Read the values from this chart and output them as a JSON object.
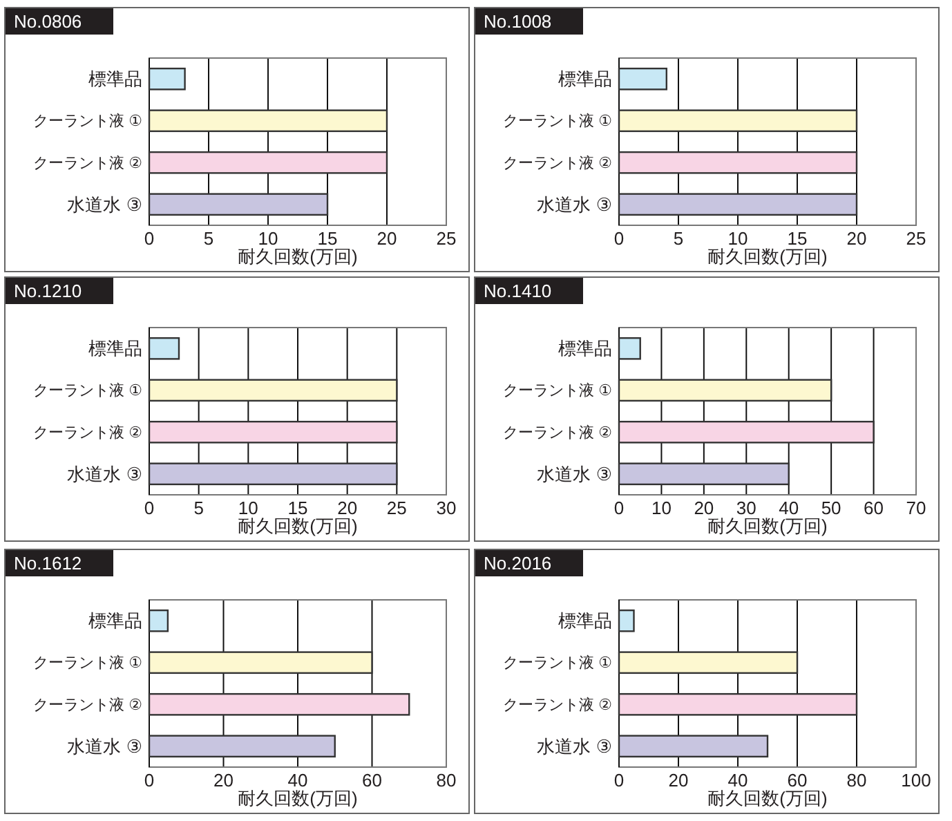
{
  "chart_data": [
    {
      "type": "bar",
      "orientation": "horizontal",
      "title": "No.0806",
      "xlabel": "耐久回数(万回)",
      "categories": [
        "標準品",
        "クーラント液 ①",
        "クーラント液 ②",
        "水道水 ③"
      ],
      "values": [
        3,
        20,
        20,
        15
      ],
      "colors": [
        "#c8e8f5",
        "#fdf8d0",
        "#f8d5e5",
        "#c8c5e0"
      ],
      "xlim": [
        0,
        25
      ],
      "xticks": [
        0,
        5,
        10,
        15,
        20,
        25
      ],
      "grid": "x"
    },
    {
      "type": "bar",
      "orientation": "horizontal",
      "title": "No.1008",
      "xlabel": "耐久回数(万回)",
      "categories": [
        "標準品",
        "クーラント液 ①",
        "クーラント液 ②",
        "水道水 ③"
      ],
      "values": [
        4,
        20,
        20,
        20
      ],
      "colors": [
        "#c8e8f5",
        "#fdf8d0",
        "#f8d5e5",
        "#c8c5e0"
      ],
      "xlim": [
        0,
        25
      ],
      "xticks": [
        0,
        5,
        10,
        15,
        20,
        25
      ],
      "grid": "x"
    },
    {
      "type": "bar",
      "orientation": "horizontal",
      "title": "No.1210",
      "xlabel": "耐久回数(万回)",
      "categories": [
        "標準品",
        "クーラント液 ①",
        "クーラント液 ②",
        "水道水 ③"
      ],
      "values": [
        3,
        25,
        25,
        25
      ],
      "colors": [
        "#c8e8f5",
        "#fdf8d0",
        "#f8d5e5",
        "#c8c5e0"
      ],
      "xlim": [
        0,
        30
      ],
      "xticks": [
        0,
        5,
        10,
        15,
        20,
        25,
        30
      ],
      "grid": "x"
    },
    {
      "type": "bar",
      "orientation": "horizontal",
      "title": "No.1410",
      "xlabel": "耐久回数(万回)",
      "categories": [
        "標準品",
        "クーラント液 ①",
        "クーラント液 ②",
        "水道水 ③"
      ],
      "values": [
        5,
        50,
        60,
        40
      ],
      "colors": [
        "#c8e8f5",
        "#fdf8d0",
        "#f8d5e5",
        "#c8c5e0"
      ],
      "xlim": [
        0,
        70
      ],
      "xticks": [
        0,
        10,
        20,
        30,
        40,
        50,
        60,
        70
      ],
      "grid": "x"
    },
    {
      "type": "bar",
      "orientation": "horizontal",
      "title": "No.1612",
      "xlabel": "耐久回数(万回)",
      "categories": [
        "標準品",
        "クーラント液 ①",
        "クーラント液 ②",
        "水道水 ③"
      ],
      "values": [
        5,
        60,
        70,
        50
      ],
      "colors": [
        "#c8e8f5",
        "#fdf8d0",
        "#f8d5e5",
        "#c8c5e0"
      ],
      "xlim": [
        0,
        80
      ],
      "xticks": [
        0,
        20,
        40,
        60,
        80
      ],
      "grid": "x"
    },
    {
      "type": "bar",
      "orientation": "horizontal",
      "title": "No.2016",
      "xlabel": "耐久回数(万回)",
      "categories": [
        "標準品",
        "クーラント液 ①",
        "クーラント液 ②",
        "水道水 ③"
      ],
      "values": [
        5,
        60,
        80,
        50
      ],
      "colors": [
        "#c8e8f5",
        "#fdf8d0",
        "#f8d5e5",
        "#c8c5e0"
      ],
      "xlim": [
        0,
        100
      ],
      "xticks": [
        0,
        20,
        40,
        60,
        80,
        100
      ],
      "grid": "x"
    }
  ]
}
